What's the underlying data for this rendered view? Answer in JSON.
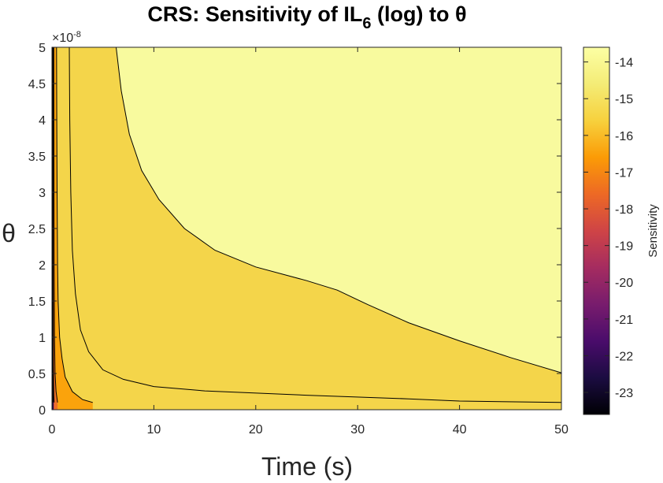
{
  "chart_data": {
    "type": "contour",
    "title_main": "CRS: Sensitivity of IL",
    "title_sub": "6",
    "title_tail": " (log) to θ",
    "xlabel": "Time (s)",
    "ylabel": "θ",
    "y_exponent_base": "×10",
    "y_exponent_power": "-8",
    "xlim": [
      0,
      50
    ],
    "ylim": [
      0,
      5
    ],
    "x_ticks": [
      0,
      10,
      20,
      30,
      40,
      50
    ],
    "y_ticks": [
      0,
      0.5,
      1,
      1.5,
      2,
      2.5,
      3,
      3.5,
      4,
      4.5,
      5
    ],
    "y_scale_factor": 1e-08,
    "colorbar": {
      "label": "Sensitivity",
      "range": [
        -23.6,
        -13.6
      ],
      "ticks": [
        -14,
        -15,
        -16,
        -17,
        -18,
        -19,
        -20,
        -21,
        -22,
        -23
      ],
      "colormap": "inferno"
    },
    "levels": [
      -23,
      -22,
      -21,
      -20,
      -19,
      -18,
      -17,
      -16,
      -15,
      -14
    ],
    "contour_boundaries": [
      {
        "name": "level-14",
        "fill": "#f8fa9e",
        "points": [
          [
            6.3,
            5
          ],
          [
            6.8,
            4.4
          ],
          [
            7.6,
            3.8
          ],
          [
            8.8,
            3.3
          ],
          [
            10.5,
            2.9
          ],
          [
            13,
            2.5
          ],
          [
            16,
            2.2
          ],
          [
            20,
            1.97
          ],
          [
            25,
            1.78
          ],
          [
            28,
            1.65
          ],
          [
            31,
            1.45
          ],
          [
            35,
            1.2
          ],
          [
            40,
            0.95
          ],
          [
            45,
            0.72
          ],
          [
            50,
            0.51
          ]
        ]
      },
      {
        "name": "level-15",
        "fill": "#f4d54a",
        "points": [
          [
            1.7,
            5
          ],
          [
            1.75,
            4
          ],
          [
            1.85,
            3
          ],
          [
            2,
            2.2
          ],
          [
            2.3,
            1.6
          ],
          [
            2.8,
            1.1
          ],
          [
            3.6,
            0.8
          ],
          [
            5,
            0.55
          ],
          [
            7,
            0.42
          ],
          [
            10,
            0.32
          ],
          [
            15,
            0.26
          ],
          [
            25,
            0.2
          ],
          [
            35,
            0.15
          ],
          [
            40,
            0.12
          ],
          [
            50,
            0.1
          ]
        ]
      },
      {
        "name": "level-16",
        "fill": "#fba30c",
        "points": [
          [
            0.45,
            5
          ],
          [
            0.47,
            4
          ],
          [
            0.5,
            3
          ],
          [
            0.55,
            2
          ],
          [
            0.6,
            1.5
          ],
          [
            0.75,
            1
          ],
          [
            1,
            0.7
          ],
          [
            1.3,
            0.45
          ],
          [
            2,
            0.25
          ],
          [
            3,
            0.14
          ],
          [
            4,
            0.1
          ]
        ]
      },
      {
        "name": "level-17",
        "fill": "#ec6f27",
        "points": [
          [
            0.18,
            5
          ],
          [
            0.2,
            3
          ],
          [
            0.22,
            2
          ],
          [
            0.25,
            1
          ],
          [
            0.3,
            0.5
          ],
          [
            0.4,
            0.25
          ],
          [
            0.55,
            0.1
          ]
        ]
      },
      {
        "name": "level-18",
        "fill": "#c9425a",
        "points": [
          [
            0.1,
            5
          ],
          [
            0.11,
            3
          ],
          [
            0.12,
            1.5
          ],
          [
            0.14,
            0.6
          ],
          [
            0.18,
            0.2
          ],
          [
            0.22,
            0.1
          ]
        ]
      },
      {
        "name": "level-19",
        "fill": "#a2305d",
        "points": [
          [
            0.06,
            5
          ],
          [
            0.06,
            3
          ],
          [
            0.07,
            1.5
          ],
          [
            0.08,
            0.5
          ],
          [
            0.1,
            0.1
          ]
        ]
      },
      {
        "name": "level-20",
        "fill": "#5a1168",
        "points": [
          [
            0.03,
            5
          ],
          [
            0.03,
            2.5
          ],
          [
            0.035,
            1
          ],
          [
            0.04,
            0.1
          ]
        ]
      }
    ],
    "base_fill": "#f4d54a",
    "left_fill": "#1d0a3c"
  }
}
